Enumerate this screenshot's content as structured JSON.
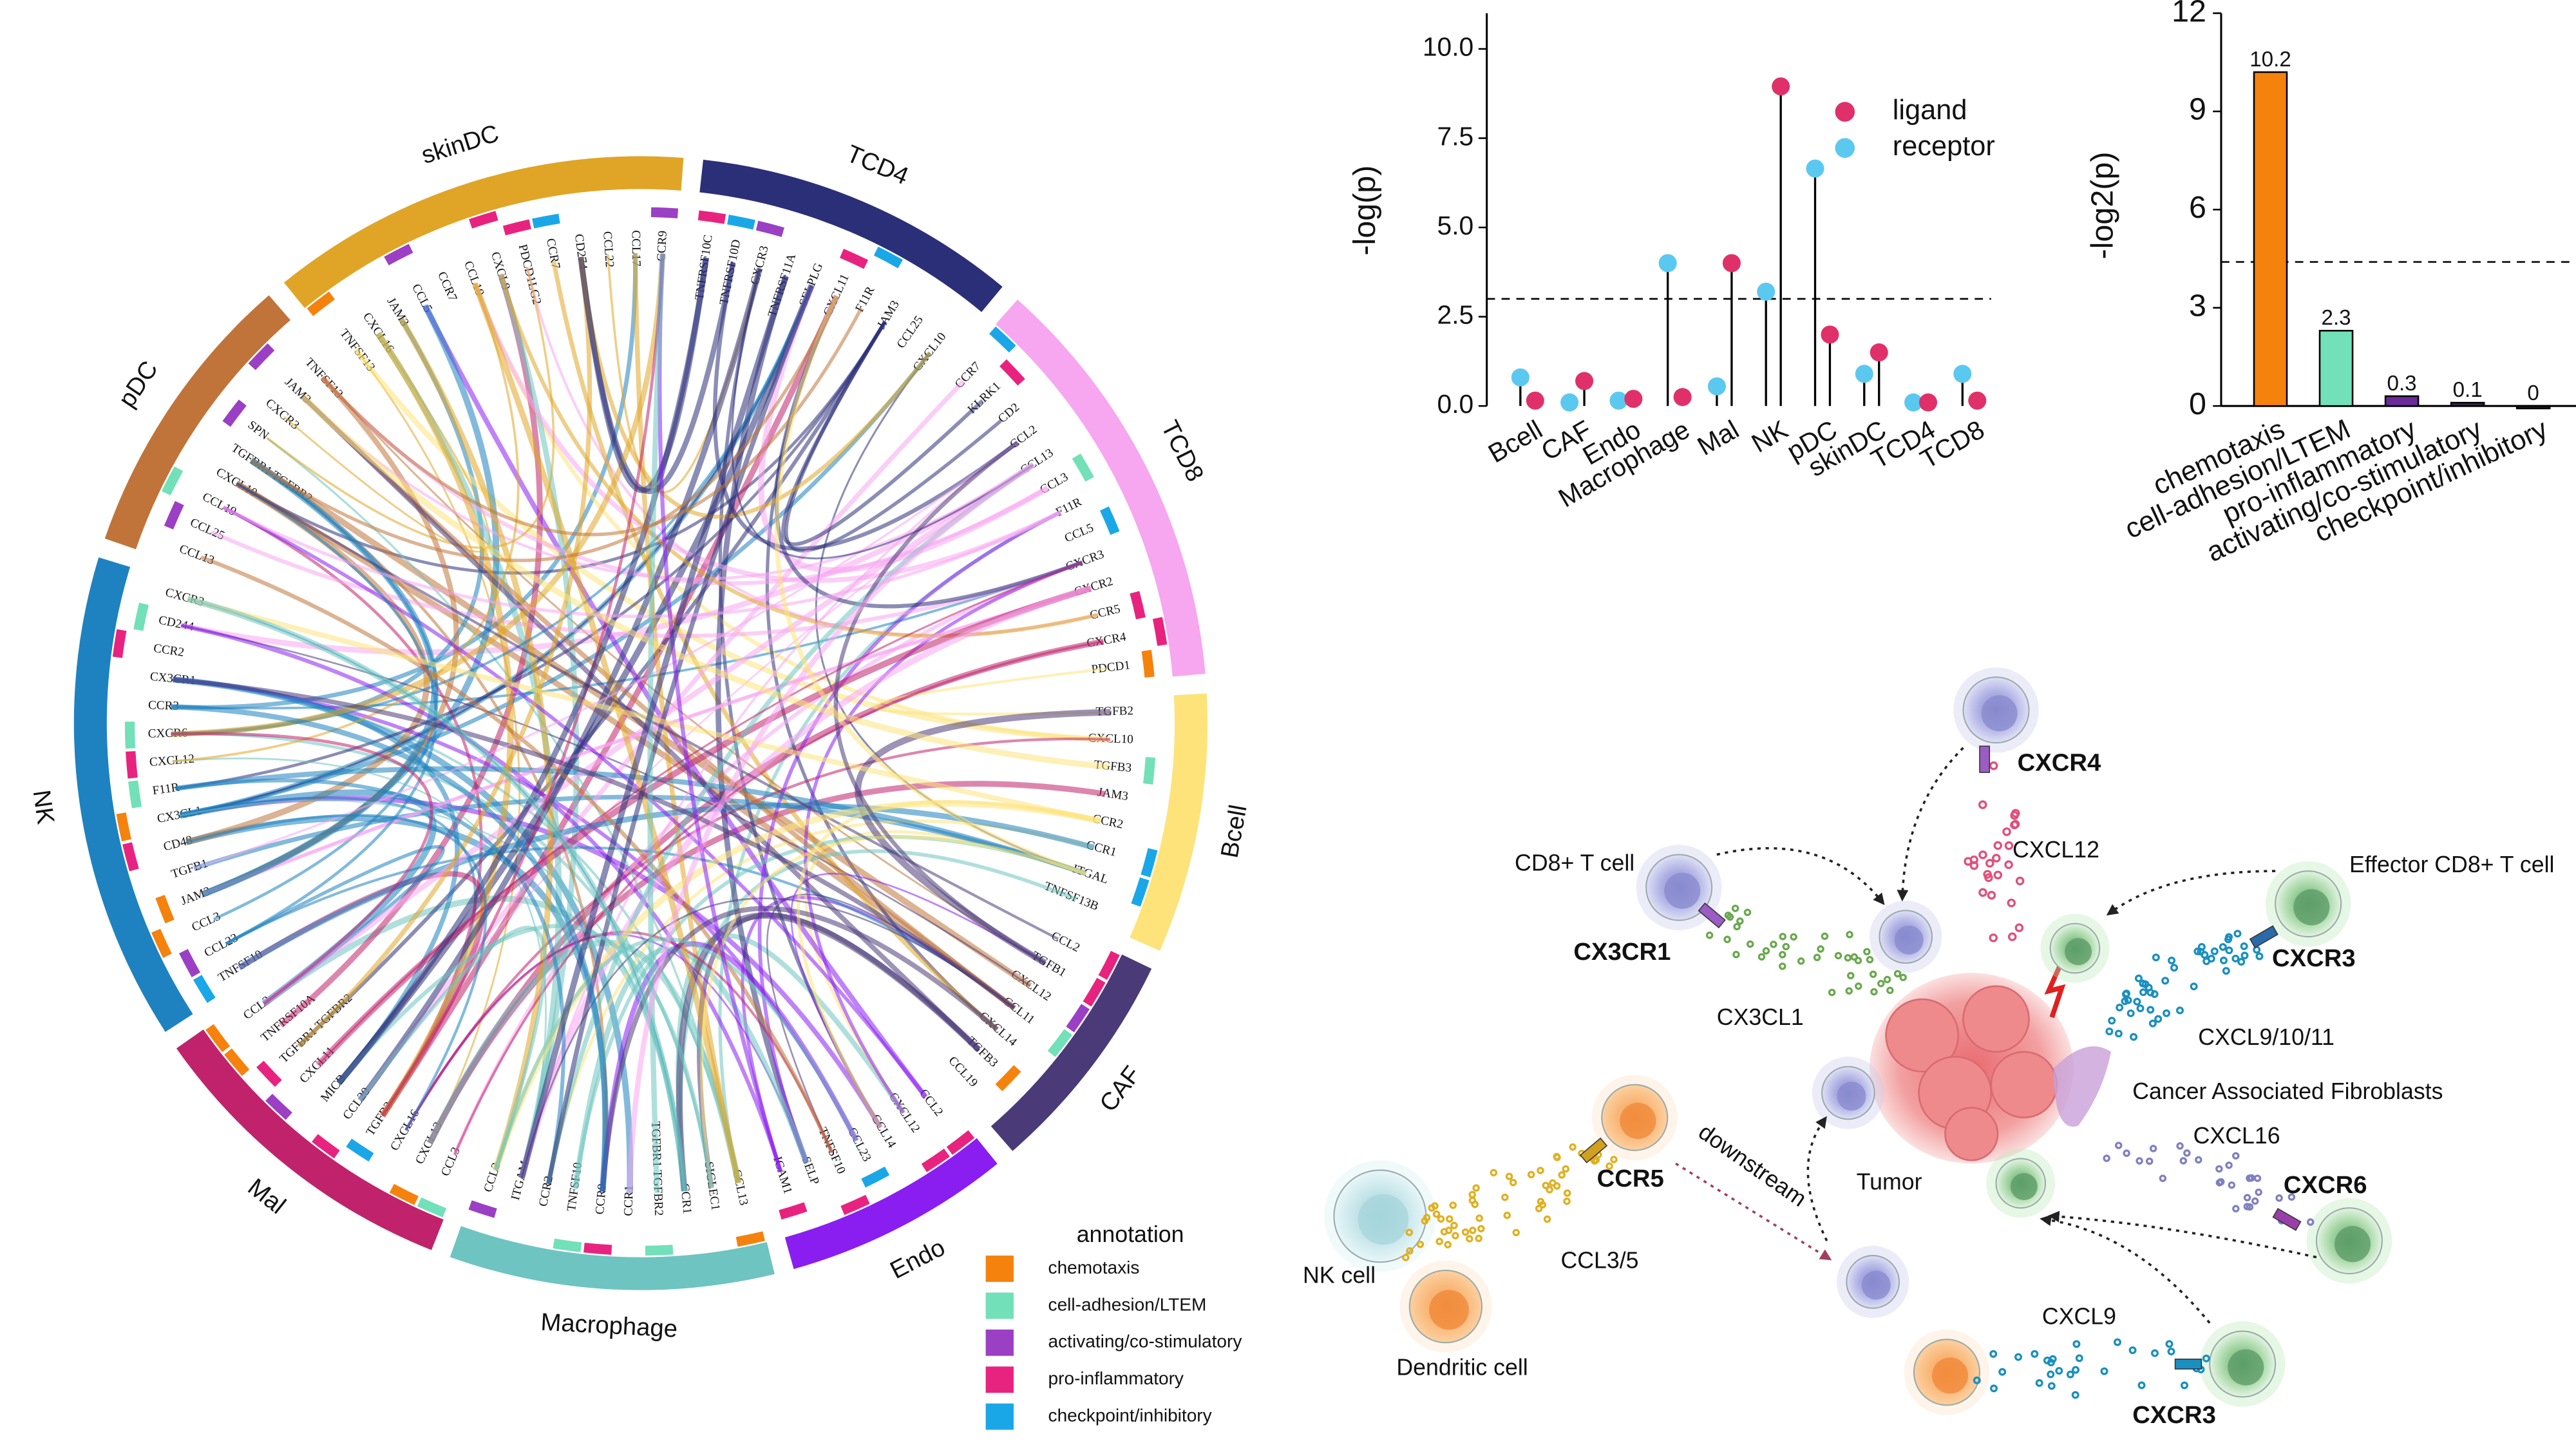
{
  "chart_data": [
    {
      "type": "chord",
      "sectors": [
        {
          "name": "skinDC",
          "color": "#e0a526",
          "genes": [
            "TNFSF13",
            "CXCL16",
            "JAM3",
            "CCL5",
            "CCR7",
            "CCL19",
            "CXCL9",
            "PDCD1LG2",
            "CCR7",
            "CD274",
            "CCL22",
            "CCL17",
            "CCR9"
          ]
        },
        {
          "name": "TCD4",
          "color": "#2b2f78",
          "genes": [
            "TNFRSF10C",
            "TNFRSF10D",
            "CXCR3",
            "TNFRSF11A",
            "SELPLG",
            "CXCL11",
            "F11R",
            "JAM3",
            "CCL25",
            "CXCL10"
          ]
        },
        {
          "name": "TCD8",
          "color": "#f7a6f0",
          "genes": [
            "CCR7",
            "KLRK1",
            "CD2",
            "CCL2",
            "CCL13",
            "CCL3",
            "F11R",
            "CCL5",
            "CXCR3",
            "CXCR2",
            "CCR5",
            "CXCR4",
            "PDCD1"
          ]
        },
        {
          "name": "Bcell",
          "color": "#fde37a",
          "genes": [
            "TGFB2",
            "CXCL10",
            "TGFB3",
            "JAM3",
            "CCR2",
            "CCR1",
            "ITGAL",
            "TNFSF13B"
          ]
        },
        {
          "name": "CAF",
          "color": "#4a3a78",
          "genes": [
            "CCL2",
            "TGFB1",
            "CXCL12",
            "CCL11",
            "CXCL14",
            "TGFB3",
            "CCL19"
          ]
        },
        {
          "name": "Endo",
          "color": "#8a1ef0",
          "genes": [
            "CCL2",
            "CXCL12",
            "CCL14",
            "CCL23",
            "TNFSF10",
            "SELP",
            "ICAM1"
          ]
        },
        {
          "name": "Macrophage",
          "color": "#6ec4c0",
          "genes": [
            "CCL13",
            "SIGLEC1",
            "CCR1",
            "TGFBR1 TGFBR2",
            "CCR1",
            "CCR9",
            "TNFSF10",
            "CCR2",
            "ITGAM",
            "CCL2"
          ]
        },
        {
          "name": "Mal",
          "color": "#c0236b",
          "genes": [
            "CCL3",
            "CXCL13",
            "CXCL16",
            "TGFB2",
            "CCL20",
            "MICB",
            "CXCL11",
            "TGFBR1 TGFBR2",
            "TNFRSF10A",
            "CCL2"
          ]
        },
        {
          "name": "NK",
          "color": "#1e82c0",
          "genes": [
            "TNFSF10",
            "CCL23",
            "CCL3",
            "JAM3",
            "TGFB1",
            "CD48",
            "CX3CL1",
            "F11R",
            "CXCL12",
            "CXCR6",
            "CCR3",
            "CX3CR1",
            "CCR2",
            "CD244",
            "CXCR3"
          ]
        },
        {
          "name": "pDC",
          "color": "#c0743a",
          "genes": [
            "CCL13",
            "CCL25",
            "CCL19",
            "CXCL10",
            "TGFBR1 TGFBR2",
            "SPN",
            "CXCR3",
            "JAM3",
            "TNFSF13"
          ]
        }
      ],
      "legend_title": "annotation",
      "annotations": [
        {
          "name": "chemotaxis",
          "color": "#f5820d"
        },
        {
          "name": "cell-adhesion/LTEM",
          "color": "#72e0b8"
        },
        {
          "name": "activating/co-stimulatory",
          "color": "#9b3fc4"
        },
        {
          "name": "pro-inflammatory",
          "color": "#e8237f"
        },
        {
          "name": "checkpoint/inhibitory",
          "color": "#1aa7e8"
        }
      ]
    },
    {
      "type": "lollipop",
      "y_label": "-log(p)",
      "categories": [
        "Bcell",
        "CAF",
        "Endo",
        "Macrophage",
        "Mal",
        "NK",
        "pDC",
        "skinDC",
        "TCD4",
        "TCD8"
      ],
      "series": [
        {
          "name": "receptor",
          "color": "#5bc8f0",
          "values": [
            0.8,
            0.1,
            0.15,
            4.0,
            0.55,
            3.2,
            6.65,
            0.9,
            0.1,
            0.9
          ]
        },
        {
          "name": "ligand",
          "color": "#e0306a",
          "values": [
            0.15,
            0.7,
            0.2,
            0.25,
            4.0,
            8.95,
            2.0,
            1.5,
            0.1,
            0.15
          ]
        }
      ],
      "threshold": 3.0,
      "ylim": [
        0,
        11
      ],
      "yticks": [
        {
          "value": 0,
          "label": "0.0"
        },
        2.5,
        {
          "value": 5,
          "label": "5.0"
        },
        7.5,
        {
          "value": 10,
          "label": "10.0"
        }
      ],
      "legend": "top-right"
    },
    {
      "type": "bar",
      "y_label": "-log2(p)",
      "categories": [
        "chemotaxis",
        "cell-adhesion/LTEM",
        "pro-inflammatory",
        "activating/co-stimulatory",
        "checkpoint/inhibitory"
      ],
      "values": [
        10.2,
        2.3,
        0.3,
        0.1,
        0
      ],
      "colors": [
        "#f5820d",
        "#72e0b8",
        "#6a2a9a",
        "#3a2a4a",
        "#222222"
      ],
      "threshold": 4.4,
      "ylim": [
        0,
        12
      ],
      "yticks": [
        0,
        3,
        6,
        9,
        12
      ]
    }
  ],
  "illustration": {
    "labels": [
      "CXCR4",
      "CXCL12",
      "CD8+ T cell",
      "Effector CD8+ T cell",
      "CX3CR1",
      "CX3CL1",
      "CXCR3",
      "CXCL9/10/11",
      "Cancer Associated Fibroblasts",
      "CCR5",
      "downstream",
      "Tumor",
      "CXCL16",
      "CXCR6",
      "NK cell",
      "CCL3/5",
      "Dendritic cell",
      "CXCL9",
      "CXCR3"
    ]
  }
}
